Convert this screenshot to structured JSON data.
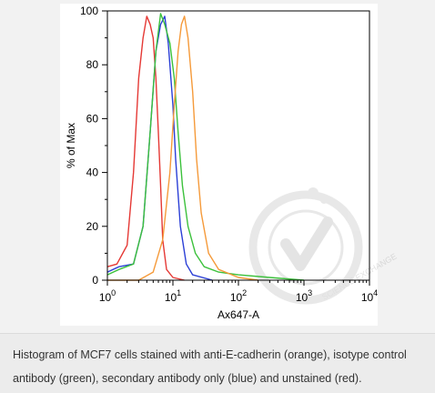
{
  "chart_data": {
    "type": "line",
    "xlabel": "Ax647-A",
    "ylabel": "% of Max",
    "xscale": "log",
    "xlim": [
      1,
      10000
    ],
    "ylim": [
      0,
      100
    ],
    "x_ticks": [
      1,
      10,
      100,
      1000,
      10000
    ],
    "x_tick_labels": [
      {
        "base": "10",
        "exp": "0"
      },
      {
        "base": "10",
        "exp": "1"
      },
      {
        "base": "10",
        "exp": "2"
      },
      {
        "base": "10",
        "exp": "3"
      },
      {
        "base": "10",
        "exp": "4"
      }
    ],
    "y_ticks": [
      0,
      20,
      40,
      60,
      80,
      100
    ],
    "y_tick_labels": [
      "0",
      "20",
      "40",
      "60",
      "80",
      "100"
    ],
    "series": [
      {
        "color": "#e53935",
        "points": [
          [
            1,
            5
          ],
          [
            1.4,
            6
          ],
          [
            2,
            13
          ],
          [
            2.5,
            40
          ],
          [
            3,
            75
          ],
          [
            3.5,
            90
          ],
          [
            4,
            98
          ],
          [
            4.5,
            95
          ],
          [
            5,
            90
          ],
          [
            5.5,
            75
          ],
          [
            6,
            55
          ],
          [
            6.5,
            35
          ],
          [
            7,
            15
          ],
          [
            8,
            4
          ],
          [
            10,
            1
          ],
          [
            15,
            0
          ]
        ]
      },
      {
        "color": "#2b3fd6",
        "points": [
          [
            1,
            3
          ],
          [
            1.5,
            5
          ],
          [
            2.5,
            6
          ],
          [
            3.5,
            20
          ],
          [
            4.5,
            55
          ],
          [
            5.5,
            85
          ],
          [
            6.5,
            95
          ],
          [
            7.5,
            98
          ],
          [
            8.5,
            88
          ],
          [
            10,
            65
          ],
          [
            11,
            45
          ],
          [
            13,
            20
          ],
          [
            16,
            6
          ],
          [
            20,
            2
          ],
          [
            40,
            0
          ]
        ]
      },
      {
        "color": "#3cc13c",
        "points": [
          [
            1,
            2
          ],
          [
            1.5,
            4
          ],
          [
            2.5,
            6
          ],
          [
            3.5,
            20
          ],
          [
            4.5,
            55
          ],
          [
            5.5,
            85
          ],
          [
            6.5,
            99
          ],
          [
            7.5,
            95
          ],
          [
            9,
            88
          ],
          [
            10.5,
            75
          ],
          [
            12,
            55
          ],
          [
            14,
            35
          ],
          [
            17,
            20
          ],
          [
            22,
            10
          ],
          [
            30,
            5
          ],
          [
            50,
            3
          ],
          [
            100,
            2
          ],
          [
            300,
            1
          ],
          [
            1000,
            0
          ]
        ]
      },
      {
        "color": "#f59a3a",
        "points": [
          [
            1,
            0
          ],
          [
            3,
            0
          ],
          [
            5,
            3
          ],
          [
            7,
            15
          ],
          [
            9,
            40
          ],
          [
            10.5,
            65
          ],
          [
            12,
            85
          ],
          [
            13.5,
            95
          ],
          [
            15,
            98
          ],
          [
            17,
            90
          ],
          [
            20,
            70
          ],
          [
            23,
            45
          ],
          [
            27,
            25
          ],
          [
            35,
            10
          ],
          [
            50,
            4
          ],
          [
            100,
            1
          ],
          [
            200,
            0
          ]
        ]
      }
    ]
  },
  "caption": {
    "text": "Histogram of MCF7 cells stained with anti-E-cadherin (orange), isotype control antibody (green), secondary antibody only (blue) and unstained (red)."
  },
  "watermark": {
    "text": "SCIENCE EXCHANGE",
    "icon": "checkmark-seal-icon"
  }
}
